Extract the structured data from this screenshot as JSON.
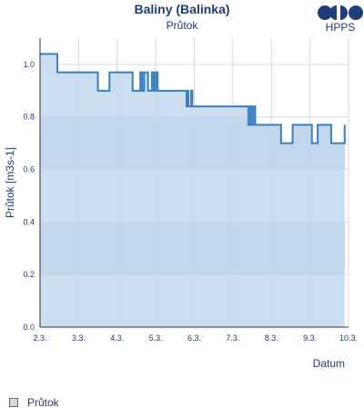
{
  "header": {
    "title": "Baliny (Balinka)",
    "subtitle": "Průtok"
  },
  "logo": {
    "text": "HPPS"
  },
  "legend": {
    "label": "Průtok"
  },
  "colors": {
    "line": "#3a7fbf",
    "fill": "#c7dcf0",
    "band": "#b9cfe6",
    "text": "#1f3d7a",
    "grid": "#d9d9d9"
  },
  "chart_data": {
    "type": "area",
    "ylabel": "Průtok [m3s-1]",
    "xlabel": "Datum",
    "xlim": [
      0,
      8.0
    ],
    "ylim": [
      0,
      1.1
    ],
    "yticks": [
      0.0,
      0.2,
      0.4,
      0.6,
      0.8,
      1.0
    ],
    "ytick_labels": [
      "0.0",
      "0.2",
      "0.4",
      "0.6",
      "0.8",
      "1.0"
    ],
    "xticks": [
      0,
      1,
      2,
      3,
      4,
      5,
      6,
      7,
      8
    ],
    "xtick_labels": [
      "2.3.",
      "3.3.",
      "4.3.",
      "5.3.",
      "6.3.",
      "7.3.",
      "8.3.",
      "9.3.",
      "10.3."
    ],
    "bands": [
      [
        0.2,
        0.4
      ],
      [
        0.6,
        0.8
      ]
    ],
    "grid": true,
    "series": [
      {
        "name": "Průtok",
        "x": [
          0,
          0.45,
          0.45,
          1.5,
          1.5,
          1.8,
          1.8,
          2.4,
          2.4,
          2.6,
          2.6,
          2.65,
          2.65,
          2.7,
          2.7,
          2.8,
          2.8,
          2.9,
          2.9,
          2.95,
          2.95,
          3.0,
          3.0,
          3.05,
          3.05,
          3.1,
          3.1,
          3.8,
          3.8,
          3.82,
          3.82,
          3.85,
          3.85,
          3.92,
          3.92,
          3.95,
          3.95,
          4.25,
          4.25,
          5.4,
          5.4,
          5.45,
          5.45,
          5.5,
          5.5,
          5.55,
          5.55,
          5.58,
          5.58,
          6.25,
          6.25,
          6.55,
          6.55,
          6.7,
          6.7,
          7.05,
          7.05,
          7.2,
          7.2,
          7.25,
          7.25,
          7.55,
          7.55,
          7.9,
          7.9
        ],
        "y": [
          1.04,
          1.04,
          0.97,
          0.97,
          0.9,
          0.9,
          0.97,
          0.97,
          0.9,
          0.9,
          0.97,
          0.97,
          0.9,
          0.9,
          0.97,
          0.97,
          0.9,
          0.9,
          0.97,
          0.97,
          0.9,
          0.9,
          0.97,
          0.97,
          0.9,
          0.9,
          0.9,
          0.9,
          0.84,
          0.84,
          0.9,
          0.9,
          0.84,
          0.84,
          0.9,
          0.9,
          0.84,
          0.84,
          0.84,
          0.84,
          0.77,
          0.77,
          0.84,
          0.84,
          0.77,
          0.77,
          0.84,
          0.84,
          0.77,
          0.77,
          0.7,
          0.7,
          0.77,
          0.77,
          0.77,
          0.77,
          0.7,
          0.7,
          0.77,
          0.77,
          0.77,
          0.77,
          0.7,
          0.7,
          0.77
        ]
      }
    ]
  }
}
